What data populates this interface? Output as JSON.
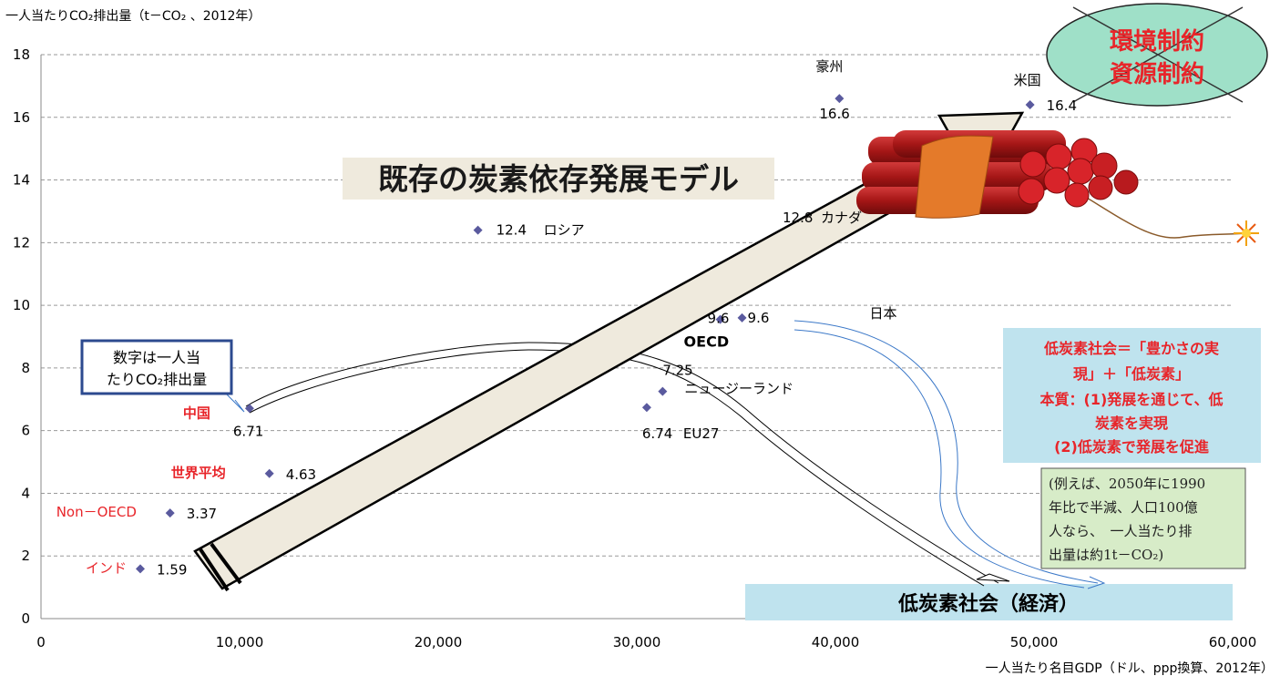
{
  "chart_data": {
    "type": "scatter",
    "title": "",
    "ylabel": "一人当たりCO₂排出量（t－CO₂ 、2012年）",
    "xlabel": "一人当たり名目GDP（ドル、ppp換算、2012年）",
    "xlim": [
      0,
      60000
    ],
    "ylim": [
      0,
      18
    ],
    "x_ticks": [
      "0",
      "10,000",
      "20,000",
      "30,000",
      "40,000",
      "50,000",
      "60,000"
    ],
    "y_ticks": [
      "0",
      "2",
      "4",
      "6",
      "8",
      "10",
      "12",
      "14",
      "16",
      "18"
    ],
    "grid": "horizontal dashed",
    "points": [
      {
        "name": "インド",
        "value_label": "1.59",
        "x": 5000,
        "y": 1.59,
        "name_color": "#e8252a"
      },
      {
        "name": "Non－OECD",
        "value_label": "3.37",
        "x": 6500,
        "y": 3.37,
        "name_color": "#e8252a"
      },
      {
        "name": "世界平均",
        "value_label": "4.63",
        "x": 11500,
        "y": 4.63,
        "name_color": "#e8252a"
      },
      {
        "name": "中国",
        "value_label": "6.71",
        "x": 10500,
        "y": 6.71,
        "name_color": "#e8252a"
      },
      {
        "name": "ロシア",
        "value_label": "12.4",
        "x": 22000,
        "y": 12.4,
        "name_color": "#000000"
      },
      {
        "name": "EU27",
        "value_label": "6.74",
        "x": 30500,
        "y": 6.74,
        "name_color": "#000000"
      },
      {
        "name": "ニュージーランド",
        "value_label": "7.25",
        "x": 31300,
        "y": 7.25,
        "name_color": "#000000"
      },
      {
        "name": "OECD",
        "value_label": "9.6",
        "x": 34200,
        "y": 9.55,
        "name_color": "#000000"
      },
      {
        "name": "日本",
        "value_label": "9.6",
        "x": 35300,
        "y": 9.6,
        "name_color": "#000000"
      },
      {
        "name": "カナダ",
        "value_label": "12.8",
        "x": 40000,
        "y": 12.8,
        "name_color": "#000000"
      },
      {
        "name": "豪州",
        "value_label": "16.6",
        "x": 40200,
        "y": 16.6,
        "name_color": "#000000"
      },
      {
        "name": "米国",
        "value_label": "16.4",
        "x": 49800,
        "y": 16.4,
        "name_color": "#000000"
      }
    ],
    "marker_color": "#5a5a9e"
  },
  "annotations": {
    "big_arrow_label": "既存の炭素依存発展モデル",
    "oval_line1": "環境制約",
    "oval_line2": "資源制約",
    "note_box_line1": "数字は一人当",
    "note_box_line2": "たりCO₂排出量",
    "lowcarbon_line1": "低炭素社会＝「豊かさの実",
    "lowcarbon_line2": "現」＋「低炭素」",
    "lowcarbon_line3": "本質：(1)発展を通じて、低",
    "lowcarbon_line4": "炭素を実現",
    "lowcarbon_line5": "(2)低炭素で発展を促進",
    "example_line1": "(例えば、2050年に1990",
    "example_line2": "年比で半減、人口100億",
    "example_line3": "人なら、　一人当たり排",
    "example_line4": "出量は約1t－CO₂)",
    "bottom_banner": "低炭素社会（経済）"
  },
  "colors": {
    "red_label": "#e8252a",
    "oval_fill": "#9fe0c8",
    "lowcarbon_box": "#bfe3ee",
    "example_box": "#d7ecc8",
    "banner_fill": "#bfe3ee",
    "big_arrow_fill": "#efeadd",
    "blue_arrow": "#3b78c8",
    "note_border": "#2c4a8f"
  }
}
